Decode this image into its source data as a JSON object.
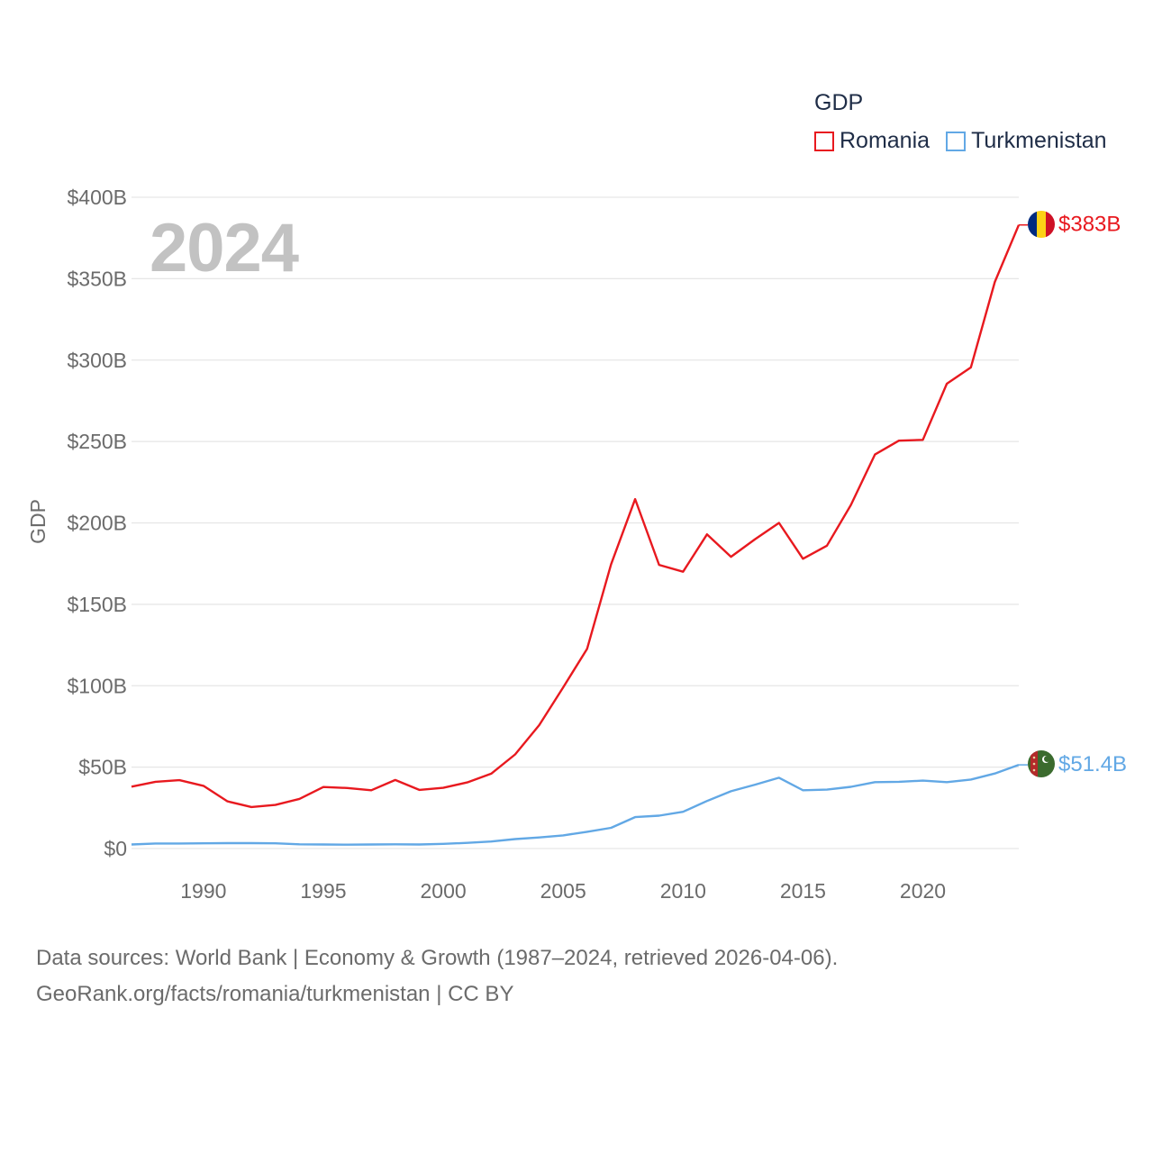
{
  "legend": {
    "title": "GDP",
    "items": [
      {
        "label": "Romania",
        "color": "#e8191f"
      },
      {
        "label": "Turkmenistan",
        "color": "#62a8e5"
      }
    ]
  },
  "year_label": "2024",
  "footer": {
    "line1": "Data sources: World Bank | Economy & Growth (1987–2024, retrieved 2026-04-06).",
    "line2": "GeoRank.org/facts/romania/turkmenistan | CC BY"
  },
  "chart_data": {
    "type": "line",
    "title": "",
    "xlabel": "",
    "ylabel": "GDP",
    "xlim": [
      1987,
      2024
    ],
    "ylim": [
      0,
      400
    ],
    "y_unit": "billion USD",
    "yticks": [
      0,
      50,
      100,
      150,
      200,
      250,
      300,
      350,
      400
    ],
    "ytick_labels": [
      "$0",
      "$50B",
      "$100B",
      "$150B",
      "$200B",
      "$250B",
      "$300B",
      "$350B",
      "$400B"
    ],
    "xticks": [
      1990,
      1995,
      2000,
      2005,
      2010,
      2015,
      2020
    ],
    "xtick_labels": [
      "1990",
      "1995",
      "2000",
      "2005",
      "2010",
      "2015",
      "2020"
    ],
    "grid": true,
    "legend_position": "top-right",
    "x": [
      1987,
      1988,
      1989,
      1990,
      1991,
      1992,
      1993,
      1994,
      1995,
      1996,
      1997,
      1998,
      1999,
      2000,
      2001,
      2002,
      2003,
      2004,
      2005,
      2006,
      2007,
      2008,
      2009,
      2010,
      2011,
      2012,
      2013,
      2014,
      2015,
      2016,
      2017,
      2018,
      2019,
      2020,
      2021,
      2022,
      2023,
      2024
    ],
    "series": [
      {
        "name": "Romania",
        "color": "#e8191f",
        "end_label": "$383B",
        "flag_icon": "romania-flag-icon",
        "values": [
          38,
          41,
          42,
          38.5,
          29,
          25.5,
          26.8,
          30.5,
          37.8,
          37.2,
          35.8,
          42.1,
          36,
          37.3,
          40.6,
          46,
          57.8,
          75.8,
          99,
          122.7,
          174.6,
          214.6,
          174.2,
          170,
          193,
          179.2,
          190,
          200,
          178,
          186,
          211,
          242,
          250.5,
          251,
          285.5,
          295.5,
          348,
          383
        ]
      },
      {
        "name": "Turkmenistan",
        "color": "#62a8e5",
        "end_label": "$51.4B",
        "flag_icon": "turkmenistan-flag-icon",
        "values": [
          2.5,
          3.1,
          3.1,
          3.2,
          3.3,
          3.3,
          3.2,
          2.6,
          2.5,
          2.4,
          2.5,
          2.6,
          2.5,
          2.9,
          3.5,
          4.3,
          5.8,
          6.8,
          8.1,
          10.3,
          12.7,
          19.3,
          20.2,
          22.6,
          29.2,
          35.2,
          39.2,
          43.5,
          35.8,
          36.2,
          37.9,
          40.8,
          41,
          41.7,
          40.8,
          42.4,
          46.1,
          51.4
        ]
      }
    ]
  }
}
